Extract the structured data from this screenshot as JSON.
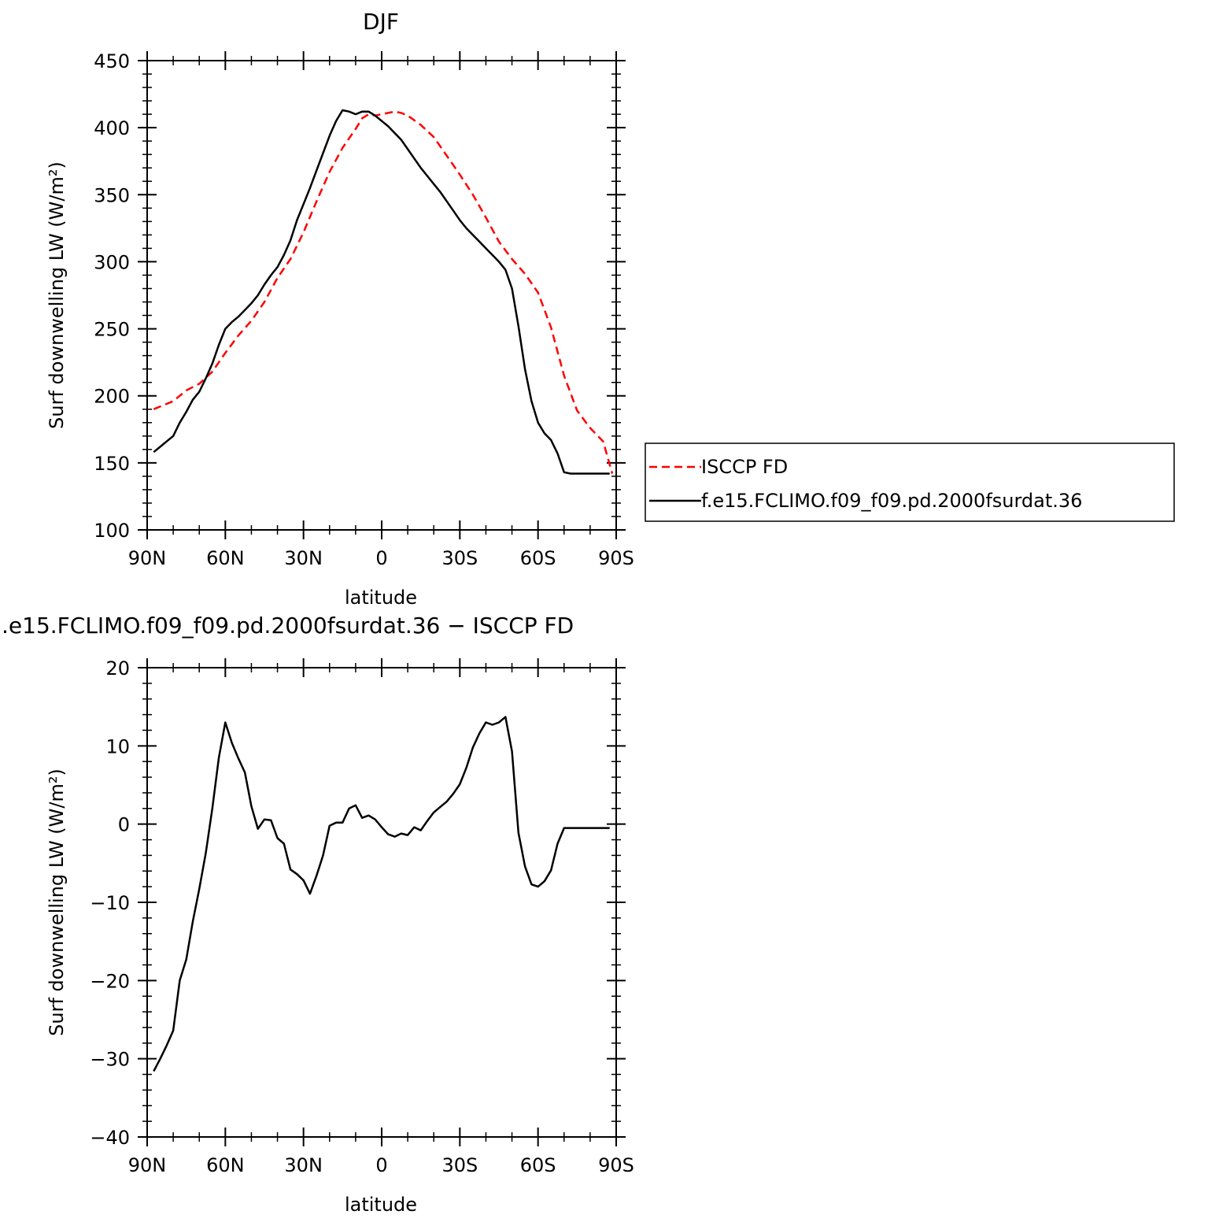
{
  "chart_data": [
    {
      "type": "line",
      "title": "DJF",
      "xlabel": "latitude",
      "ylabel": "Surf downwelling LW (W/m²)",
      "xlim": [
        90,
        -90
      ],
      "ylim": [
        100,
        450
      ],
      "xtick_values": [
        90,
        60,
        30,
        0,
        -30,
        -60,
        -90
      ],
      "xtick_labels": [
        "90N",
        "60N",
        "30N",
        "0",
        "30S",
        "60S",
        "90S"
      ],
      "ytick_values": [
        100,
        150,
        200,
        250,
        300,
        350,
        400,
        450
      ],
      "ytick_labels": [
        "100",
        "150",
        "200",
        "250",
        "300",
        "350",
        "400",
        "450"
      ],
      "legend_position": "right",
      "series": [
        {
          "name": "ISCCP FD",
          "color": "#ff0000",
          "dash": "dashed",
          "x": [
            87.5,
            80,
            75,
            70,
            65,
            60,
            55,
            50,
            45,
            40,
            35,
            30,
            25,
            20,
            15,
            10,
            7.5,
            5,
            2.5,
            0,
            -2.5,
            -5,
            -7.5,
            -10,
            -15,
            -20,
            -25,
            -30,
            -35,
            -40,
            -45,
            -50,
            -55,
            -60,
            -65,
            -70,
            -75,
            -80,
            -85,
            -88.5
          ],
          "y": [
            190,
            196,
            204,
            209,
            218,
            232,
            245,
            256,
            270,
            288,
            302,
            322,
            345,
            367,
            385,
            399,
            407,
            410,
            409,
            410,
            411,
            412,
            411,
            409,
            402,
            393,
            379,
            365,
            350,
            333,
            315,
            302,
            291,
            277,
            251,
            215,
            189,
            176,
            166,
            142
          ]
        },
        {
          "name": "f.e15.FCLIMO.f09_f09.pd.2000fsurdat.36",
          "color": "#000000",
          "dash": "solid",
          "x": [
            87.5,
            85,
            82.5,
            80,
            77.5,
            75,
            72.5,
            70,
            67.5,
            65,
            62.5,
            60,
            57.5,
            55,
            52.5,
            50,
            47.5,
            45,
            42.5,
            40,
            37.5,
            35,
            32.5,
            30,
            27.5,
            25,
            22.5,
            20,
            17.5,
            15,
            12.5,
            10,
            7.5,
            5,
            2.5,
            0,
            -2.5,
            -5,
            -7.5,
            -10,
            -12.5,
            -15,
            -17.5,
            -20,
            -22.5,
            -25,
            -27.5,
            -30,
            -32.5,
            -35,
            -37.5,
            -40,
            -42.5,
            -45,
            -47.5,
            -50,
            -52.5,
            -55,
            -57.5,
            -60,
            -62.5,
            -65,
            -67.5,
            -70,
            -72.5,
            -75,
            -77.5,
            -80,
            -82.5,
            -85,
            -87.5
          ],
          "y": [
            158,
            162,
            166,
            170,
            180,
            188,
            197,
            203,
            213,
            224,
            238,
            250,
            255,
            259,
            264,
            269,
            275,
            283,
            290,
            296,
            305,
            316,
            331,
            343,
            355,
            368,
            381,
            394,
            405,
            413,
            412,
            410,
            412,
            412,
            409,
            405,
            401,
            396,
            391,
            384,
            377,
            370,
            364,
            358,
            352,
            345,
            338,
            331,
            325,
            320,
            315,
            310,
            305,
            300,
            294,
            280,
            252,
            220,
            196,
            180,
            172,
            167,
            157,
            143,
            142,
            142,
            142,
            142,
            142,
            142,
            142
          ]
        }
      ]
    },
    {
      "type": "line",
      "title": ".e15.FCLIMO.f09_f09.pd.2000fsurdat.36 − ISCCP FD",
      "xlabel": "latitude",
      "ylabel": "Surf downwelling LW (W/m²)",
      "xlim": [
        90,
        -90
      ],
      "ylim": [
        -40,
        20
      ],
      "xtick_values": [
        90,
        60,
        30,
        0,
        -30,
        -60,
        -90
      ],
      "xtick_labels": [
        "90N",
        "60N",
        "30N",
        "0",
        "30S",
        "60S",
        "90S"
      ],
      "ytick_values": [
        -40,
        -30,
        -20,
        -10,
        0,
        10,
        20
      ],
      "ytick_labels": [
        "−40",
        "−30",
        "−20",
        "−10",
        "0",
        "10",
        "20"
      ],
      "series": [
        {
          "color": "#000000",
          "dash": "solid",
          "x": [
            87.5,
            85,
            82.5,
            80,
            77.5,
            75,
            72.5,
            70,
            67.5,
            65,
            62.5,
            60,
            57.5,
            55,
            52.5,
            50,
            47.5,
            45,
            42.5,
            40,
            37.5,
            35,
            32.5,
            30,
            27.5,
            25,
            22.5,
            20,
            17.5,
            15,
            12.5,
            10,
            7.5,
            5,
            2.5,
            0,
            -2.5,
            -5,
            -7.5,
            -10,
            -12.5,
            -15,
            -17.5,
            -20,
            -22.5,
            -25,
            -27.5,
            -30,
            -32.5,
            -35,
            -37.5,
            -40,
            -42.5,
            -45,
            -47.5,
            -50,
            -52.5,
            -55,
            -57.5,
            -60,
            -62.5,
            -65,
            -67.5,
            -70,
            -72.5,
            -75,
            -77.5,
            -80,
            -82.5,
            -85,
            -87.5
          ],
          "y": [
            -31.6,
            -30,
            -28.3,
            -26.4,
            -20,
            -17.3,
            -12.5,
            -8.3,
            -3.7,
            2,
            8.5,
            13,
            10.4,
            8.4,
            6.6,
            2.3,
            -0.6,
            0.6,
            0.5,
            -1.8,
            -2.5,
            -5.8,
            -6.4,
            -7.2,
            -8.9,
            -6.6,
            -4,
            -0.2,
            0.2,
            0.2,
            2,
            2.4,
            0.8,
            1.1,
            0.6,
            -0.4,
            -1.3,
            -1.6,
            -1.2,
            -1.4,
            -0.4,
            -0.8,
            0.4,
            1.5,
            2.2,
            2.9,
            3.9,
            5.1,
            7.2,
            9.8,
            11.6,
            13,
            12.7,
            13,
            13.7,
            9.3,
            -1.1,
            -5.4,
            -7.7,
            -8,
            -7.3,
            -5.9,
            -2.5,
            -0.5,
            -0.5,
            -0.5,
            -0.5,
            -0.5,
            -0.5,
            -0.5,
            -0.5
          ]
        }
      ]
    }
  ]
}
